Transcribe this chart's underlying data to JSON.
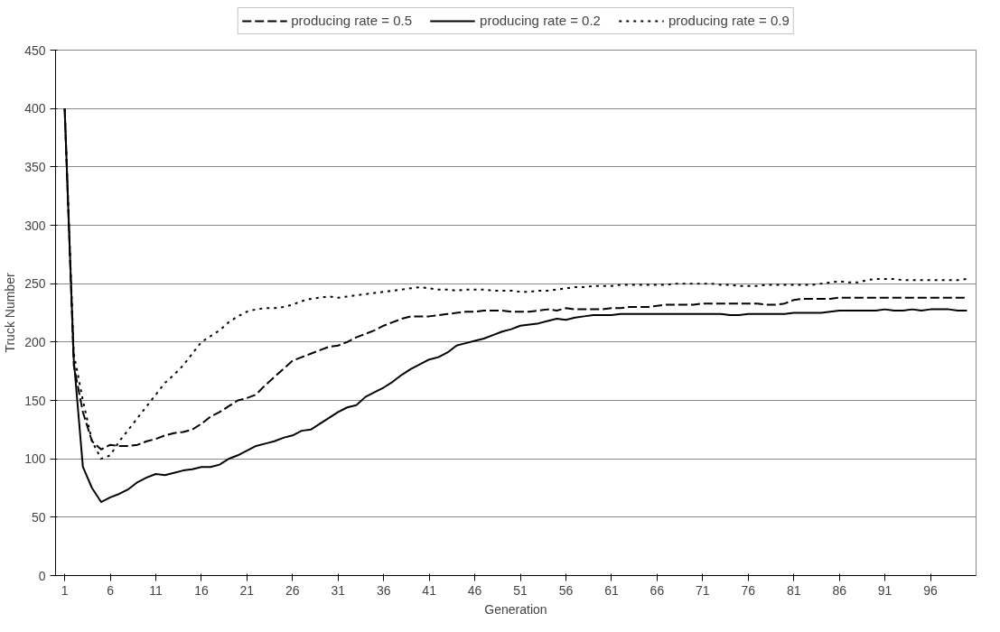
{
  "chart_data": {
    "type": "line",
    "xlabel": "Generation",
    "ylabel": "Truck Number",
    "x": [
      1,
      2,
      3,
      4,
      5,
      6,
      7,
      8,
      9,
      10,
      11,
      12,
      13,
      14,
      15,
      16,
      17,
      18,
      19,
      20,
      21,
      22,
      23,
      24,
      25,
      26,
      27,
      28,
      29,
      30,
      31,
      32,
      33,
      34,
      35,
      36,
      37,
      38,
      39,
      40,
      41,
      42,
      43,
      44,
      45,
      46,
      47,
      48,
      49,
      50,
      51,
      52,
      53,
      54,
      55,
      56,
      57,
      58,
      59,
      60,
      61,
      62,
      63,
      64,
      65,
      66,
      67,
      68,
      69,
      70,
      71,
      72,
      73,
      74,
      75,
      76,
      77,
      78,
      79,
      80,
      81,
      82,
      83,
      84,
      85,
      86,
      87,
      88,
      89,
      90,
      91,
      92,
      93,
      94,
      95,
      96,
      97,
      98,
      99,
      100
    ],
    "series": [
      {
        "name": "producing rate = 0.5",
        "color": "#000000",
        "line_style": "dashed",
        "values": [
          400,
          180,
          140,
          115,
          108,
          112,
          111,
          111,
          112,
          115,
          117,
          120,
          122,
          123,
          125,
          130,
          136,
          140,
          145,
          150,
          152,
          155,
          163,
          170,
          177,
          184,
          187,
          190,
          193,
          196,
          197,
          200,
          204,
          207,
          210,
          214,
          217,
          220,
          222,
          222,
          222,
          223,
          224,
          225,
          226,
          226,
          227,
          227,
          227,
          226,
          226,
          226,
          227,
          228,
          227,
          229,
          228,
          228,
          228,
          228,
          229,
          229,
          230,
          230,
          230,
          231,
          232,
          232,
          232,
          232,
          233,
          233,
          233,
          233,
          233,
          233,
          233,
          232,
          232,
          233,
          236,
          237,
          237,
          237,
          237,
          238,
          238,
          238,
          238,
          238,
          238,
          238,
          238,
          238,
          238,
          238,
          238,
          238,
          238,
          238
        ]
      },
      {
        "name": "producing rate = 0.2",
        "color": "#000000",
        "line_style": "solid",
        "values": [
          400,
          185,
          93,
          75,
          63,
          67,
          70,
          74,
          80,
          84,
          87,
          86,
          88,
          90,
          91,
          93,
          93,
          95,
          100,
          103,
          107,
          111,
          113,
          115,
          118,
          120,
          124,
          125,
          130,
          135,
          140,
          144,
          146,
          153,
          157,
          161,
          166,
          172,
          177,
          181,
          185,
          187,
          191,
          197,
          199,
          201,
          203,
          206,
          209,
          211,
          214,
          215,
          216,
          218,
          220,
          219,
          221,
          222,
          223,
          223,
          223,
          224,
          224,
          224,
          224,
          224,
          224,
          224,
          224,
          224,
          224,
          224,
          224,
          223,
          223,
          224,
          224,
          224,
          224,
          224,
          225,
          225,
          225,
          225,
          226,
          227,
          227,
          227,
          227,
          227,
          228,
          227,
          227,
          228,
          227,
          228,
          228,
          228,
          227,
          227
        ]
      },
      {
        "name": "producing rate = 0.9",
        "color": "#000000",
        "line_style": "dotted",
        "values": [
          400,
          190,
          150,
          115,
          100,
          103,
          115,
          125,
          135,
          145,
          155,
          165,
          172,
          180,
          190,
          200,
          205,
          210,
          217,
          222,
          226,
          228,
          229,
          229,
          230,
          232,
          235,
          237,
          238,
          239,
          238,
          239,
          240,
          241,
          242,
          243,
          244,
          245,
          246,
          247,
          246,
          245,
          245,
          244,
          245,
          245,
          245,
          244,
          244,
          244,
          243,
          243,
          244,
          244,
          245,
          246,
          247,
          247,
          248,
          248,
          248,
          249,
          249,
          249,
          249,
          249,
          249,
          250,
          250,
          250,
          250,
          250,
          249,
          249,
          248,
          248,
          248,
          249,
          249,
          249,
          249,
          249,
          249,
          250,
          251,
          252,
          251,
          251,
          253,
          254,
          254,
          254,
          253,
          253,
          253,
          253,
          253,
          253,
          253,
          254
        ]
      }
    ],
    "xlim": [
      0,
      101
    ],
    "xticks": [
      1,
      6,
      11,
      16,
      21,
      26,
      31,
      36,
      41,
      46,
      51,
      56,
      61,
      66,
      71,
      76,
      81,
      86,
      91,
      96
    ],
    "ylim": [
      0,
      450
    ],
    "yticks": [
      0,
      50,
      100,
      150,
      200,
      250,
      300,
      350,
      400,
      450
    ],
    "grid": "y",
    "legend": "top",
    "marker": "none"
  }
}
